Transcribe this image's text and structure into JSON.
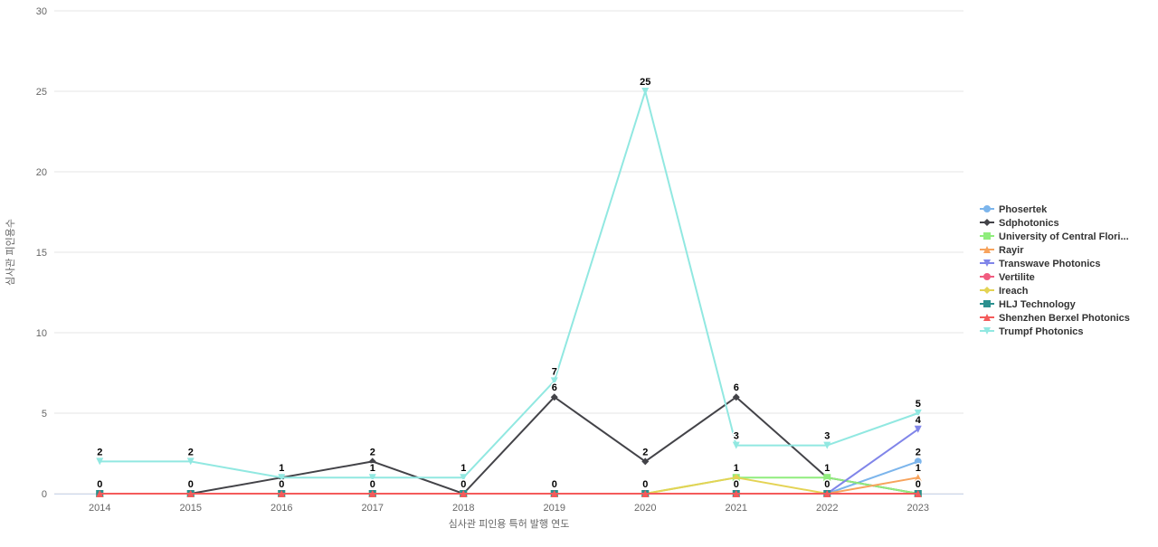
{
  "chart_data": {
    "type": "line",
    "title": "",
    "xlabel": "심사관 피인용 특허 발행 연도",
    "ylabel": "심사관 피인용수",
    "x": [
      "2014",
      "2015",
      "2016",
      "2017",
      "2018",
      "2019",
      "2020",
      "2021",
      "2022",
      "2023"
    ],
    "ylim": [
      0,
      30
    ],
    "yticks": [
      0,
      5,
      10,
      15,
      20,
      25,
      30
    ],
    "grid": "horizontal",
    "legend_position": "right",
    "colors": {
      "grid": "#e6e6e6",
      "axis": "#ccd6eb",
      "tick_text": "#666666",
      "legend_text": "#333333",
      "data_label_text": "#000000"
    },
    "series": [
      {
        "name": "Phosertek",
        "color": "#7cb5ec",
        "marker": "circle",
        "values": [
          0,
          0,
          0,
          0,
          0,
          0,
          0,
          0,
          0,
          2
        ]
      },
      {
        "name": "Sdphotonics",
        "color": "#434348",
        "marker": "diamond",
        "values": [
          0,
          0,
          1,
          2,
          0,
          6,
          2,
          6,
          1,
          0
        ]
      },
      {
        "name": "University of Central Flori...",
        "color": "#90ed7d",
        "marker": "square",
        "values": [
          0,
          0,
          0,
          0,
          0,
          0,
          0,
          1,
          1,
          0
        ]
      },
      {
        "name": "Rayir",
        "color": "#f7a35c",
        "marker": "triangle",
        "values": [
          0,
          0,
          0,
          0,
          0,
          0,
          0,
          0,
          0,
          1
        ]
      },
      {
        "name": "Transwave Photonics",
        "color": "#8085e9",
        "marker": "triangle-down",
        "values": [
          0,
          0,
          0,
          0,
          0,
          0,
          0,
          0,
          0,
          4
        ]
      },
      {
        "name": "Vertilite",
        "color": "#f15c80",
        "marker": "circle",
        "values": [
          0,
          0,
          0,
          0,
          0,
          0,
          0,
          0,
          0,
          0
        ]
      },
      {
        "name": "Ireach",
        "color": "#e4d354",
        "marker": "diamond",
        "values": [
          0,
          0,
          0,
          0,
          0,
          0,
          0,
          1,
          0,
          0
        ]
      },
      {
        "name": "HLJ Technology",
        "color": "#2b908f",
        "marker": "square",
        "values": [
          0,
          0,
          0,
          0,
          0,
          0,
          0,
          0,
          0,
          0
        ]
      },
      {
        "name": "Shenzhen Berxel Photonics",
        "color": "#f45b5b",
        "marker": "triangle",
        "values": [
          0,
          0,
          0,
          0,
          0,
          0,
          0,
          0,
          0,
          0
        ]
      },
      {
        "name": "Trumpf Photonics",
        "color": "#91e8e1",
        "marker": "triangle-down",
        "values": [
          2,
          2,
          1,
          1,
          1,
          7,
          25,
          3,
          3,
          5
        ]
      }
    ]
  }
}
